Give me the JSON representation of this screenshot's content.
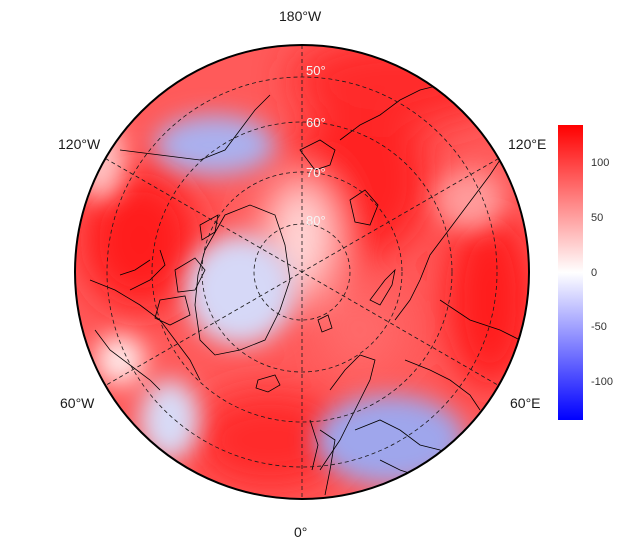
{
  "map": {
    "longitude_labels": {
      "top": "180°W",
      "upper_left": "120°W",
      "upper_right": "120°E",
      "lower_left": "60°W",
      "lower_right": "60°E",
      "bottom": "0°"
    },
    "latitude_labels": [
      "50°",
      "60°",
      "70°",
      "80°"
    ],
    "projection": "north polar stereographic",
    "graticule": "dashed"
  },
  "colorbar": {
    "ticks": [
      "100",
      "50",
      "0",
      "-50",
      "-100"
    ],
    "tick_values": [
      100,
      50,
      0,
      -50,
      -100
    ],
    "range": [
      -135,
      135
    ],
    "colors": {
      "high": "#ff0000",
      "mid": "#ffffff",
      "low": "#0000ff"
    }
  }
}
